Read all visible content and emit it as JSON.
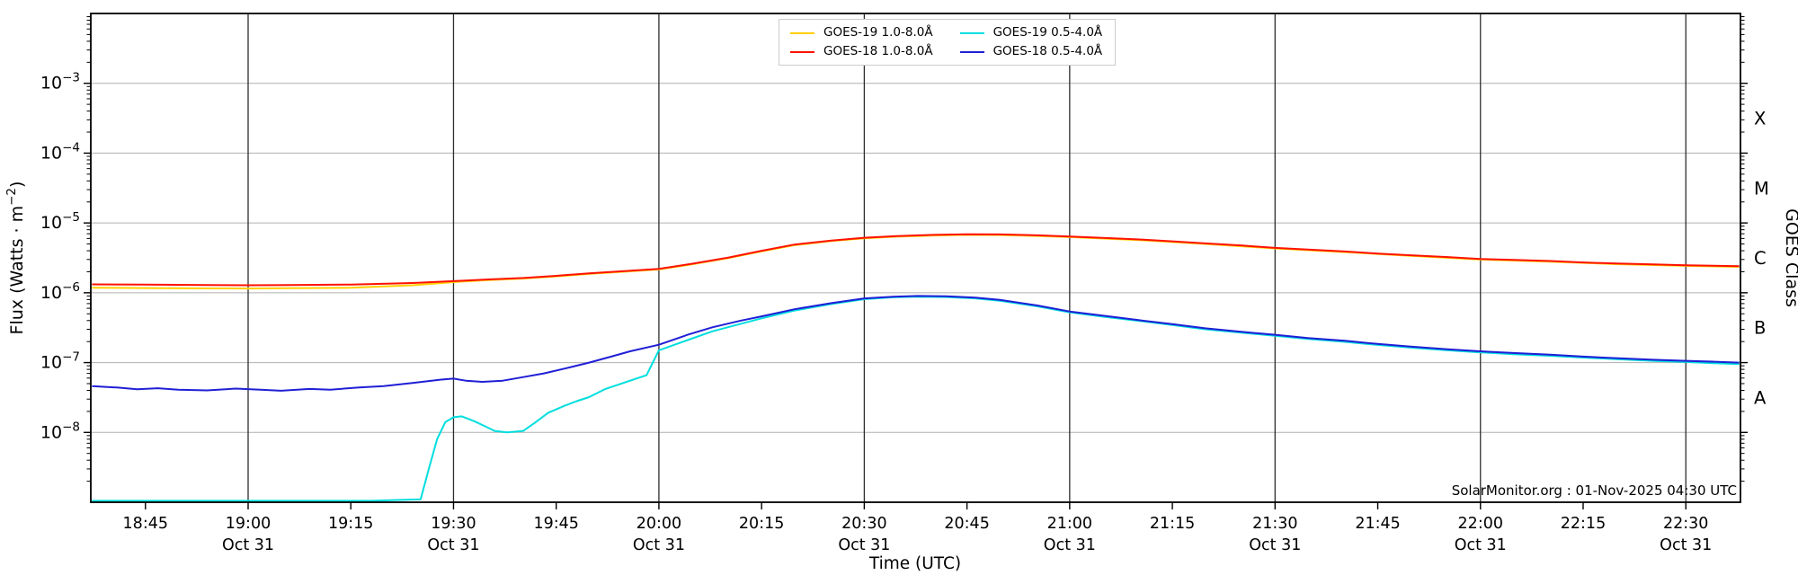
{
  "watermark": "SolarMonitor.org : 01-Nov-2025 04:30 UTC",
  "axes": {
    "x_label": "Time (UTC)",
    "y_label": {
      "prefix": "Flux (Watts · m",
      "sup": "−2",
      "suffix": ")"
    },
    "right_label": "GOES Class",
    "x_ticks": [
      {
        "label": "18:45",
        "sub": "",
        "hour": 18.75,
        "major": false
      },
      {
        "label": "19:00",
        "sub": "Oct 31",
        "hour": 19.0,
        "major": true
      },
      {
        "label": "19:15",
        "sub": "",
        "hour": 19.25,
        "major": false
      },
      {
        "label": "19:30",
        "sub": "Oct 31",
        "hour": 19.5,
        "major": true
      },
      {
        "label": "19:45",
        "sub": "",
        "hour": 19.75,
        "major": false
      },
      {
        "label": "20:00",
        "sub": "Oct 31",
        "hour": 20.0,
        "major": true
      },
      {
        "label": "20:15",
        "sub": "",
        "hour": 20.25,
        "major": false
      },
      {
        "label": "20:30",
        "sub": "Oct 31",
        "hour": 20.5,
        "major": true
      },
      {
        "label": "20:45",
        "sub": "",
        "hour": 20.75,
        "major": false
      },
      {
        "label": "21:00",
        "sub": "Oct 31",
        "hour": 21.0,
        "major": true
      },
      {
        "label": "21:15",
        "sub": "",
        "hour": 21.25,
        "major": false
      },
      {
        "label": "21:30",
        "sub": "Oct 31",
        "hour": 21.5,
        "major": true
      },
      {
        "label": "21:45",
        "sub": "",
        "hour": 21.75,
        "major": false
      },
      {
        "label": "22:00",
        "sub": "Oct 31",
        "hour": 22.0,
        "major": true
      },
      {
        "label": "22:15",
        "sub": "",
        "hour": 22.25,
        "major": false
      },
      {
        "label": "22:30",
        "sub": "Oct 31",
        "hour": 22.5,
        "major": true
      }
    ],
    "y_tick_exponents": [
      -3,
      -4,
      -5,
      -6,
      -7,
      -8
    ],
    "goes_classes": [
      {
        "label": "X",
        "log_center": -3.5
      },
      {
        "label": "M",
        "log_center": -4.5
      },
      {
        "label": "C",
        "log_center": -5.5
      },
      {
        "label": "B",
        "log_center": -6.5
      },
      {
        "label": "A",
        "log_center": -7.5
      }
    ]
  },
  "chart_data": {
    "type": "line",
    "title": "",
    "xlabel": "Time (UTC)",
    "ylabel": "Flux (Watts · m−2)",
    "right_axis_label": "GOES Class",
    "x_unit": "decimal hours UTC on Oct 31",
    "y_unit": "W m^-2 (log scale)",
    "x_range_hours": [
      18.617,
      22.633
    ],
    "y_range_log10": [
      -9,
      -2
    ],
    "grid": {
      "horizontal_at_exponents": [
        -3,
        -4,
        -5,
        -6,
        -7,
        -8
      ],
      "vertical_every_minutes": 30
    },
    "legend_position": "upper center",
    "series": [
      {
        "name": "GOES-19 1.0-8.0Å",
        "color": "#ffcf00",
        "points": [
          [
            18.62,
            1.18e-06
          ],
          [
            18.75,
            1.17e-06
          ],
          [
            18.9,
            1.155e-06
          ],
          [
            19.0,
            1.15e-06
          ],
          [
            19.1,
            1.16e-06
          ],
          [
            19.25,
            1.18e-06
          ],
          [
            19.4,
            1.28e-06
          ],
          [
            19.5,
            1.42e-06
          ],
          [
            19.58,
            1.51e-06
          ],
          [
            19.67,
            1.6e-06
          ],
          [
            19.75,
            1.72e-06
          ],
          [
            19.83,
            1.86e-06
          ],
          [
            19.92,
            2.01e-06
          ],
          [
            20.0,
            2.16e-06
          ],
          [
            20.08,
            2.55e-06
          ],
          [
            20.17,
            3.14e-06
          ],
          [
            20.25,
            3.92e-06
          ],
          [
            20.33,
            4.8e-06
          ],
          [
            20.42,
            5.5e-06
          ],
          [
            20.5,
            6.03e-06
          ],
          [
            20.58,
            6.37e-06
          ],
          [
            20.67,
            6.62e-06
          ],
          [
            20.75,
            6.76e-06
          ],
          [
            20.83,
            6.71e-06
          ],
          [
            20.92,
            6.52e-06
          ],
          [
            21.0,
            6.27e-06
          ],
          [
            21.17,
            5.68e-06
          ],
          [
            21.33,
            5e-06
          ],
          [
            21.5,
            4.31e-06
          ],
          [
            21.67,
            3.82e-06
          ],
          [
            21.83,
            3.38e-06
          ],
          [
            22.0,
            2.99e-06
          ],
          [
            22.17,
            2.79e-06
          ],
          [
            22.33,
            2.57e-06
          ],
          [
            22.5,
            2.43e-06
          ],
          [
            22.63,
            2.35e-06
          ]
        ]
      },
      {
        "name": "GOES-18 1.0-8.0Å",
        "color": "#ff1200",
        "points": [
          [
            18.62,
            1.32e-06
          ],
          [
            18.75,
            1.31e-06
          ],
          [
            18.9,
            1.29e-06
          ],
          [
            19.0,
            1.28e-06
          ],
          [
            19.1,
            1.29e-06
          ],
          [
            19.25,
            1.31e-06
          ],
          [
            19.4,
            1.38e-06
          ],
          [
            19.5,
            1.47e-06
          ],
          [
            19.58,
            1.55e-06
          ],
          [
            19.67,
            1.63e-06
          ],
          [
            19.75,
            1.75e-06
          ],
          [
            19.83,
            1.9e-06
          ],
          [
            19.92,
            2.05e-06
          ],
          [
            20.0,
            2.2e-06
          ],
          [
            20.08,
            2.6e-06
          ],
          [
            20.17,
            3.2e-06
          ],
          [
            20.25,
            4e-06
          ],
          [
            20.33,
            4.9e-06
          ],
          [
            20.42,
            5.6e-06
          ],
          [
            20.5,
            6.15e-06
          ],
          [
            20.58,
            6.5e-06
          ],
          [
            20.67,
            6.75e-06
          ],
          [
            20.75,
            6.9e-06
          ],
          [
            20.83,
            6.85e-06
          ],
          [
            20.92,
            6.65e-06
          ],
          [
            21.0,
            6.4e-06
          ],
          [
            21.08,
            6.1e-06
          ],
          [
            21.17,
            5.8e-06
          ],
          [
            21.25,
            5.45e-06
          ],
          [
            21.33,
            5.1e-06
          ],
          [
            21.42,
            4.75e-06
          ],
          [
            21.5,
            4.4e-06
          ],
          [
            21.58,
            4.15e-06
          ],
          [
            21.67,
            3.9e-06
          ],
          [
            21.75,
            3.65e-06
          ],
          [
            21.83,
            3.45e-06
          ],
          [
            21.92,
            3.25e-06
          ],
          [
            22.0,
            3.05e-06
          ],
          [
            22.08,
            2.95e-06
          ],
          [
            22.17,
            2.85e-06
          ],
          [
            22.25,
            2.72e-06
          ],
          [
            22.33,
            2.62e-06
          ],
          [
            22.42,
            2.55e-06
          ],
          [
            22.5,
            2.48e-06
          ],
          [
            22.63,
            2.4e-06
          ]
        ]
      },
      {
        "name": "GOES-19 0.5-4.0Å",
        "color": "#00dede",
        "points": [
          [
            18.62,
            1.05e-09
          ],
          [
            19.0,
            1.05e-09
          ],
          [
            19.3,
            1.05e-09
          ],
          [
            19.42,
            1.1e-09
          ],
          [
            19.44,
            3e-09
          ],
          [
            19.46,
            8e-09
          ],
          [
            19.48,
            1.4e-08
          ],
          [
            19.5,
            1.65e-08
          ],
          [
            19.52,
            1.7e-08
          ],
          [
            19.55,
            1.45e-08
          ],
          [
            19.58,
            1.2e-08
          ],
          [
            19.6,
            1.05e-08
          ],
          [
            19.63,
            1e-08
          ],
          [
            19.67,
            1.05e-08
          ],
          [
            19.7,
            1.4e-08
          ],
          [
            19.73,
            1.9e-08
          ],
          [
            19.77,
            2.4e-08
          ],
          [
            19.8,
            2.8e-08
          ],
          [
            19.83,
            3.2e-08
          ],
          [
            19.87,
            4.2e-08
          ],
          [
            19.9,
            4.8e-08
          ],
          [
            19.93,
            5.5e-08
          ],
          [
            19.97,
            6.6e-08
          ],
          [
            20.0,
            1.5e-07
          ],
          [
            20.07,
            2.1e-07
          ],
          [
            20.13,
            2.8e-07
          ],
          [
            20.2,
            3.6e-07
          ],
          [
            20.25,
            4.3e-07
          ],
          [
            20.33,
            5.55e-07
          ],
          [
            20.42,
            6.9e-07
          ],
          [
            20.5,
            8.1e-07
          ],
          [
            20.57,
            8.6e-07
          ],
          [
            20.63,
            8.8e-07
          ],
          [
            20.7,
            8.7e-07
          ],
          [
            20.77,
            8.3e-07
          ],
          [
            20.83,
            7.7e-07
          ],
          [
            20.92,
            6.4e-07
          ],
          [
            21.0,
            5.25e-07
          ],
          [
            21.08,
            4.55e-07
          ],
          [
            21.17,
            3.95e-07
          ],
          [
            21.25,
            3.45e-07
          ],
          [
            21.33,
            3e-07
          ],
          [
            21.42,
            2.67e-07
          ],
          [
            21.5,
            2.42e-07
          ],
          [
            21.58,
            2.18e-07
          ],
          [
            21.67,
            1.98e-07
          ],
          [
            21.75,
            1.79e-07
          ],
          [
            21.83,
            1.64e-07
          ],
          [
            21.92,
            1.5e-07
          ],
          [
            22.0,
            1.4e-07
          ],
          [
            22.08,
            1.32e-07
          ],
          [
            22.17,
            1.25e-07
          ],
          [
            22.25,
            1.18e-07
          ],
          [
            22.33,
            1.12e-07
          ],
          [
            22.42,
            1.06e-07
          ],
          [
            22.5,
            1.02e-07
          ],
          [
            22.57,
            9.8e-08
          ],
          [
            22.63,
            9.5e-08
          ]
        ]
      },
      {
        "name": "GOES-18 0.5-4.0Å",
        "color": "#1f1fd6",
        "points": [
          [
            18.62,
            4.6e-08
          ],
          [
            18.68,
            4.4e-08
          ],
          [
            18.73,
            4.15e-08
          ],
          [
            18.78,
            4.3e-08
          ],
          [
            18.83,
            4.1e-08
          ],
          [
            18.9,
            4e-08
          ],
          [
            18.97,
            4.25e-08
          ],
          [
            19.03,
            4.1e-08
          ],
          [
            19.08,
            3.95e-08
          ],
          [
            19.15,
            4.2e-08
          ],
          [
            19.2,
            4.1e-08
          ],
          [
            19.27,
            4.4e-08
          ],
          [
            19.33,
            4.6e-08
          ],
          [
            19.4,
            5.1e-08
          ],
          [
            19.47,
            5.7e-08
          ],
          [
            19.5,
            5.9e-08
          ],
          [
            19.53,
            5.5e-08
          ],
          [
            19.57,
            5.3e-08
          ],
          [
            19.62,
            5.5e-08
          ],
          [
            19.67,
            6.2e-08
          ],
          [
            19.72,
            7e-08
          ],
          [
            19.77,
            8.2e-08
          ],
          [
            19.83,
            1e-07
          ],
          [
            19.88,
            1.2e-07
          ],
          [
            19.93,
            1.45e-07
          ],
          [
            20.0,
            1.8e-07
          ],
          [
            20.07,
            2.5e-07
          ],
          [
            20.13,
            3.2e-07
          ],
          [
            20.2,
            4e-07
          ],
          [
            20.25,
            4.6e-07
          ],
          [
            20.33,
            5.8e-07
          ],
          [
            20.42,
            7.1e-07
          ],
          [
            20.5,
            8.3e-07
          ],
          [
            20.57,
            8.8e-07
          ],
          [
            20.63,
            9e-07
          ],
          [
            20.7,
            8.9e-07
          ],
          [
            20.77,
            8.5e-07
          ],
          [
            20.83,
            7.9e-07
          ],
          [
            20.92,
            6.6e-07
          ],
          [
            21.0,
            5.4e-07
          ],
          [
            21.08,
            4.7e-07
          ],
          [
            21.17,
            4.05e-07
          ],
          [
            21.25,
            3.55e-07
          ],
          [
            21.33,
            3.1e-07
          ],
          [
            21.42,
            2.75e-07
          ],
          [
            21.5,
            2.5e-07
          ],
          [
            21.58,
            2.25e-07
          ],
          [
            21.67,
            2.05e-07
          ],
          [
            21.75,
            1.85e-07
          ],
          [
            21.83,
            1.7e-07
          ],
          [
            21.92,
            1.55e-07
          ],
          [
            22.0,
            1.45e-07
          ],
          [
            22.08,
            1.37e-07
          ],
          [
            22.17,
            1.3e-07
          ],
          [
            22.25,
            1.22e-07
          ],
          [
            22.33,
            1.16e-07
          ],
          [
            22.42,
            1.1e-07
          ],
          [
            22.5,
            1.06e-07
          ],
          [
            22.57,
            1.03e-07
          ],
          [
            22.63,
            1e-07
          ]
        ]
      }
    ]
  },
  "legend": {
    "items": [
      {
        "label": "GOES-19 1.0-8.0Å",
        "color": "#ffcf00"
      },
      {
        "label": "GOES-18 1.0-8.0Å",
        "color": "#ff1200"
      },
      {
        "label": "GOES-19 0.5-4.0Å",
        "color": "#00dede"
      },
      {
        "label": "GOES-18 0.5-4.0Å",
        "color": "#1f1fd6"
      }
    ]
  },
  "style": {
    "h_grid_color": "#b0b0b0",
    "v_grid_color": "#2e2e2e",
    "spine_color": "#000000"
  }
}
